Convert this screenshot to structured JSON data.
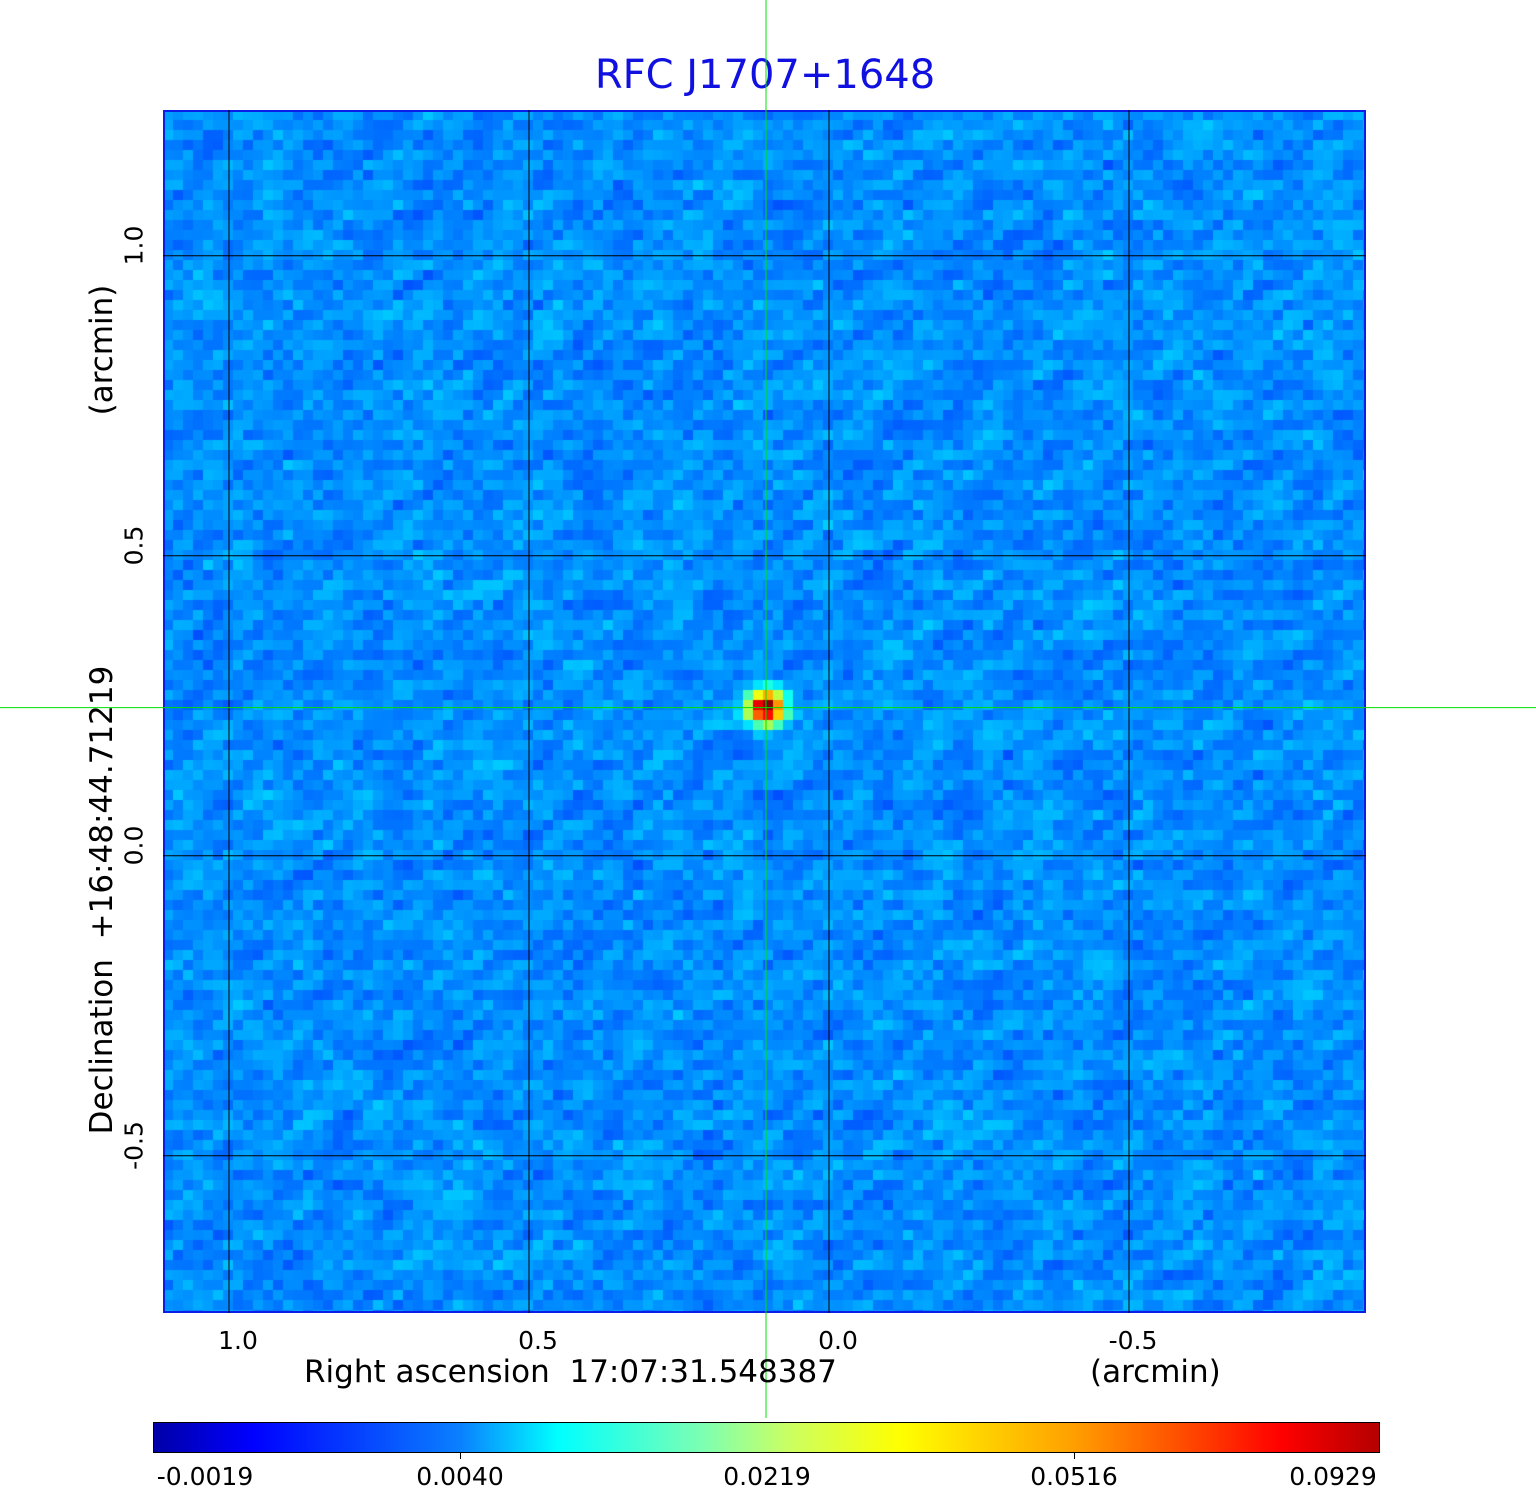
{
  "chart_data": {
    "type": "heatmap",
    "title": "RFC J1707+1648",
    "xlabel": "Right ascension  17:07:31.548387",
    "xunit": "(arcmin)",
    "ylabel": "Declination  +16:48:44.71219",
    "yunit": "(arcmin)",
    "x_ticks": [
      "1.0",
      "0.5",
      "0.0",
      "-0.5"
    ],
    "y_ticks": [
      "1.0",
      "0.5",
      "0.0",
      "-0.5"
    ],
    "xlim": [
      1.11,
      -0.895
    ],
    "ylim": [
      -0.762,
      1.243
    ],
    "grid": true,
    "colormap": "jet",
    "colorbar": {
      "ticks": [
        "-0.0019",
        "0.0040",
        "0.0219",
        "0.0516",
        "0.0929"
      ],
      "min": -0.0019,
      "max": 0.0929,
      "placement": "bottom"
    },
    "peak": {
      "x": 0.105,
      "y": 0.247,
      "value": 0.0929
    },
    "crosshair": {
      "x": 0.105,
      "y": 0.247,
      "color": "#00e000"
    },
    "background_color": "#1a5cf0"
  }
}
